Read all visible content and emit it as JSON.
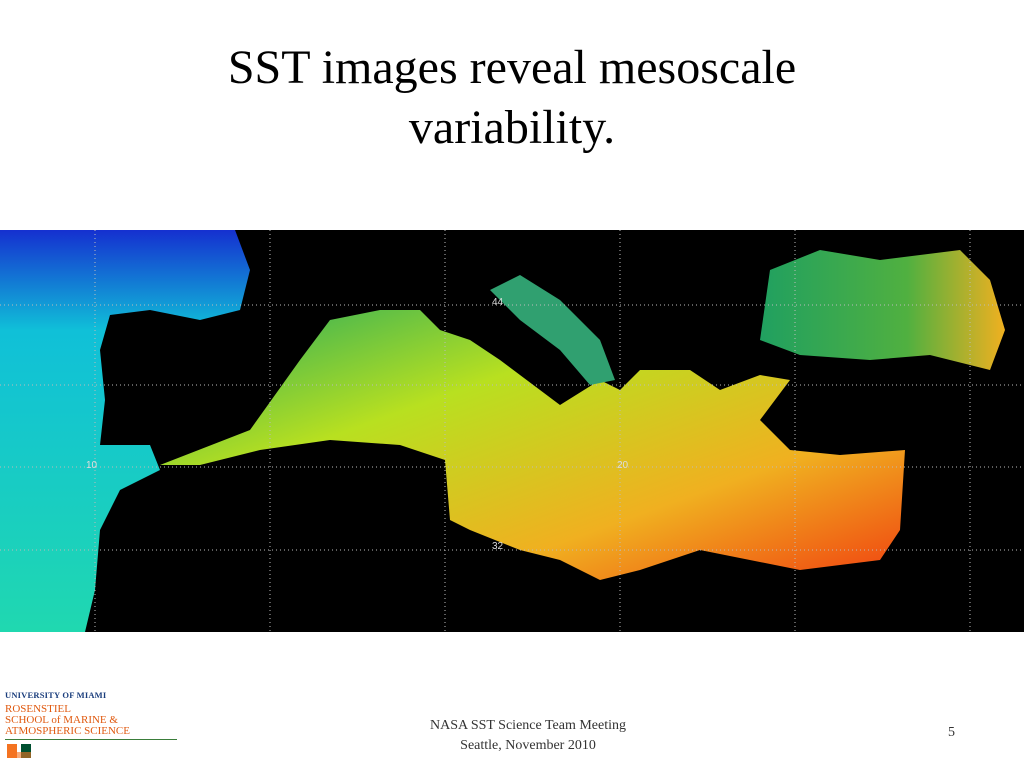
{
  "slide": {
    "title": "SST images reveal mesoscale variability.",
    "map": {
      "labels": [
        "44",
        "10",
        "20",
        "32"
      ]
    },
    "logo": {
      "line1": "UNIVERSITY OF MIAMI",
      "line2": "ROSENSTIEL",
      "line3": "SCHOOL of MARINE &",
      "line4": "ATMOSPHERIC SCIENCE"
    },
    "footer": {
      "line1": "NASA SST Science Team Meeting",
      "line2": "Seattle, November 2010"
    },
    "page_number": "5"
  }
}
